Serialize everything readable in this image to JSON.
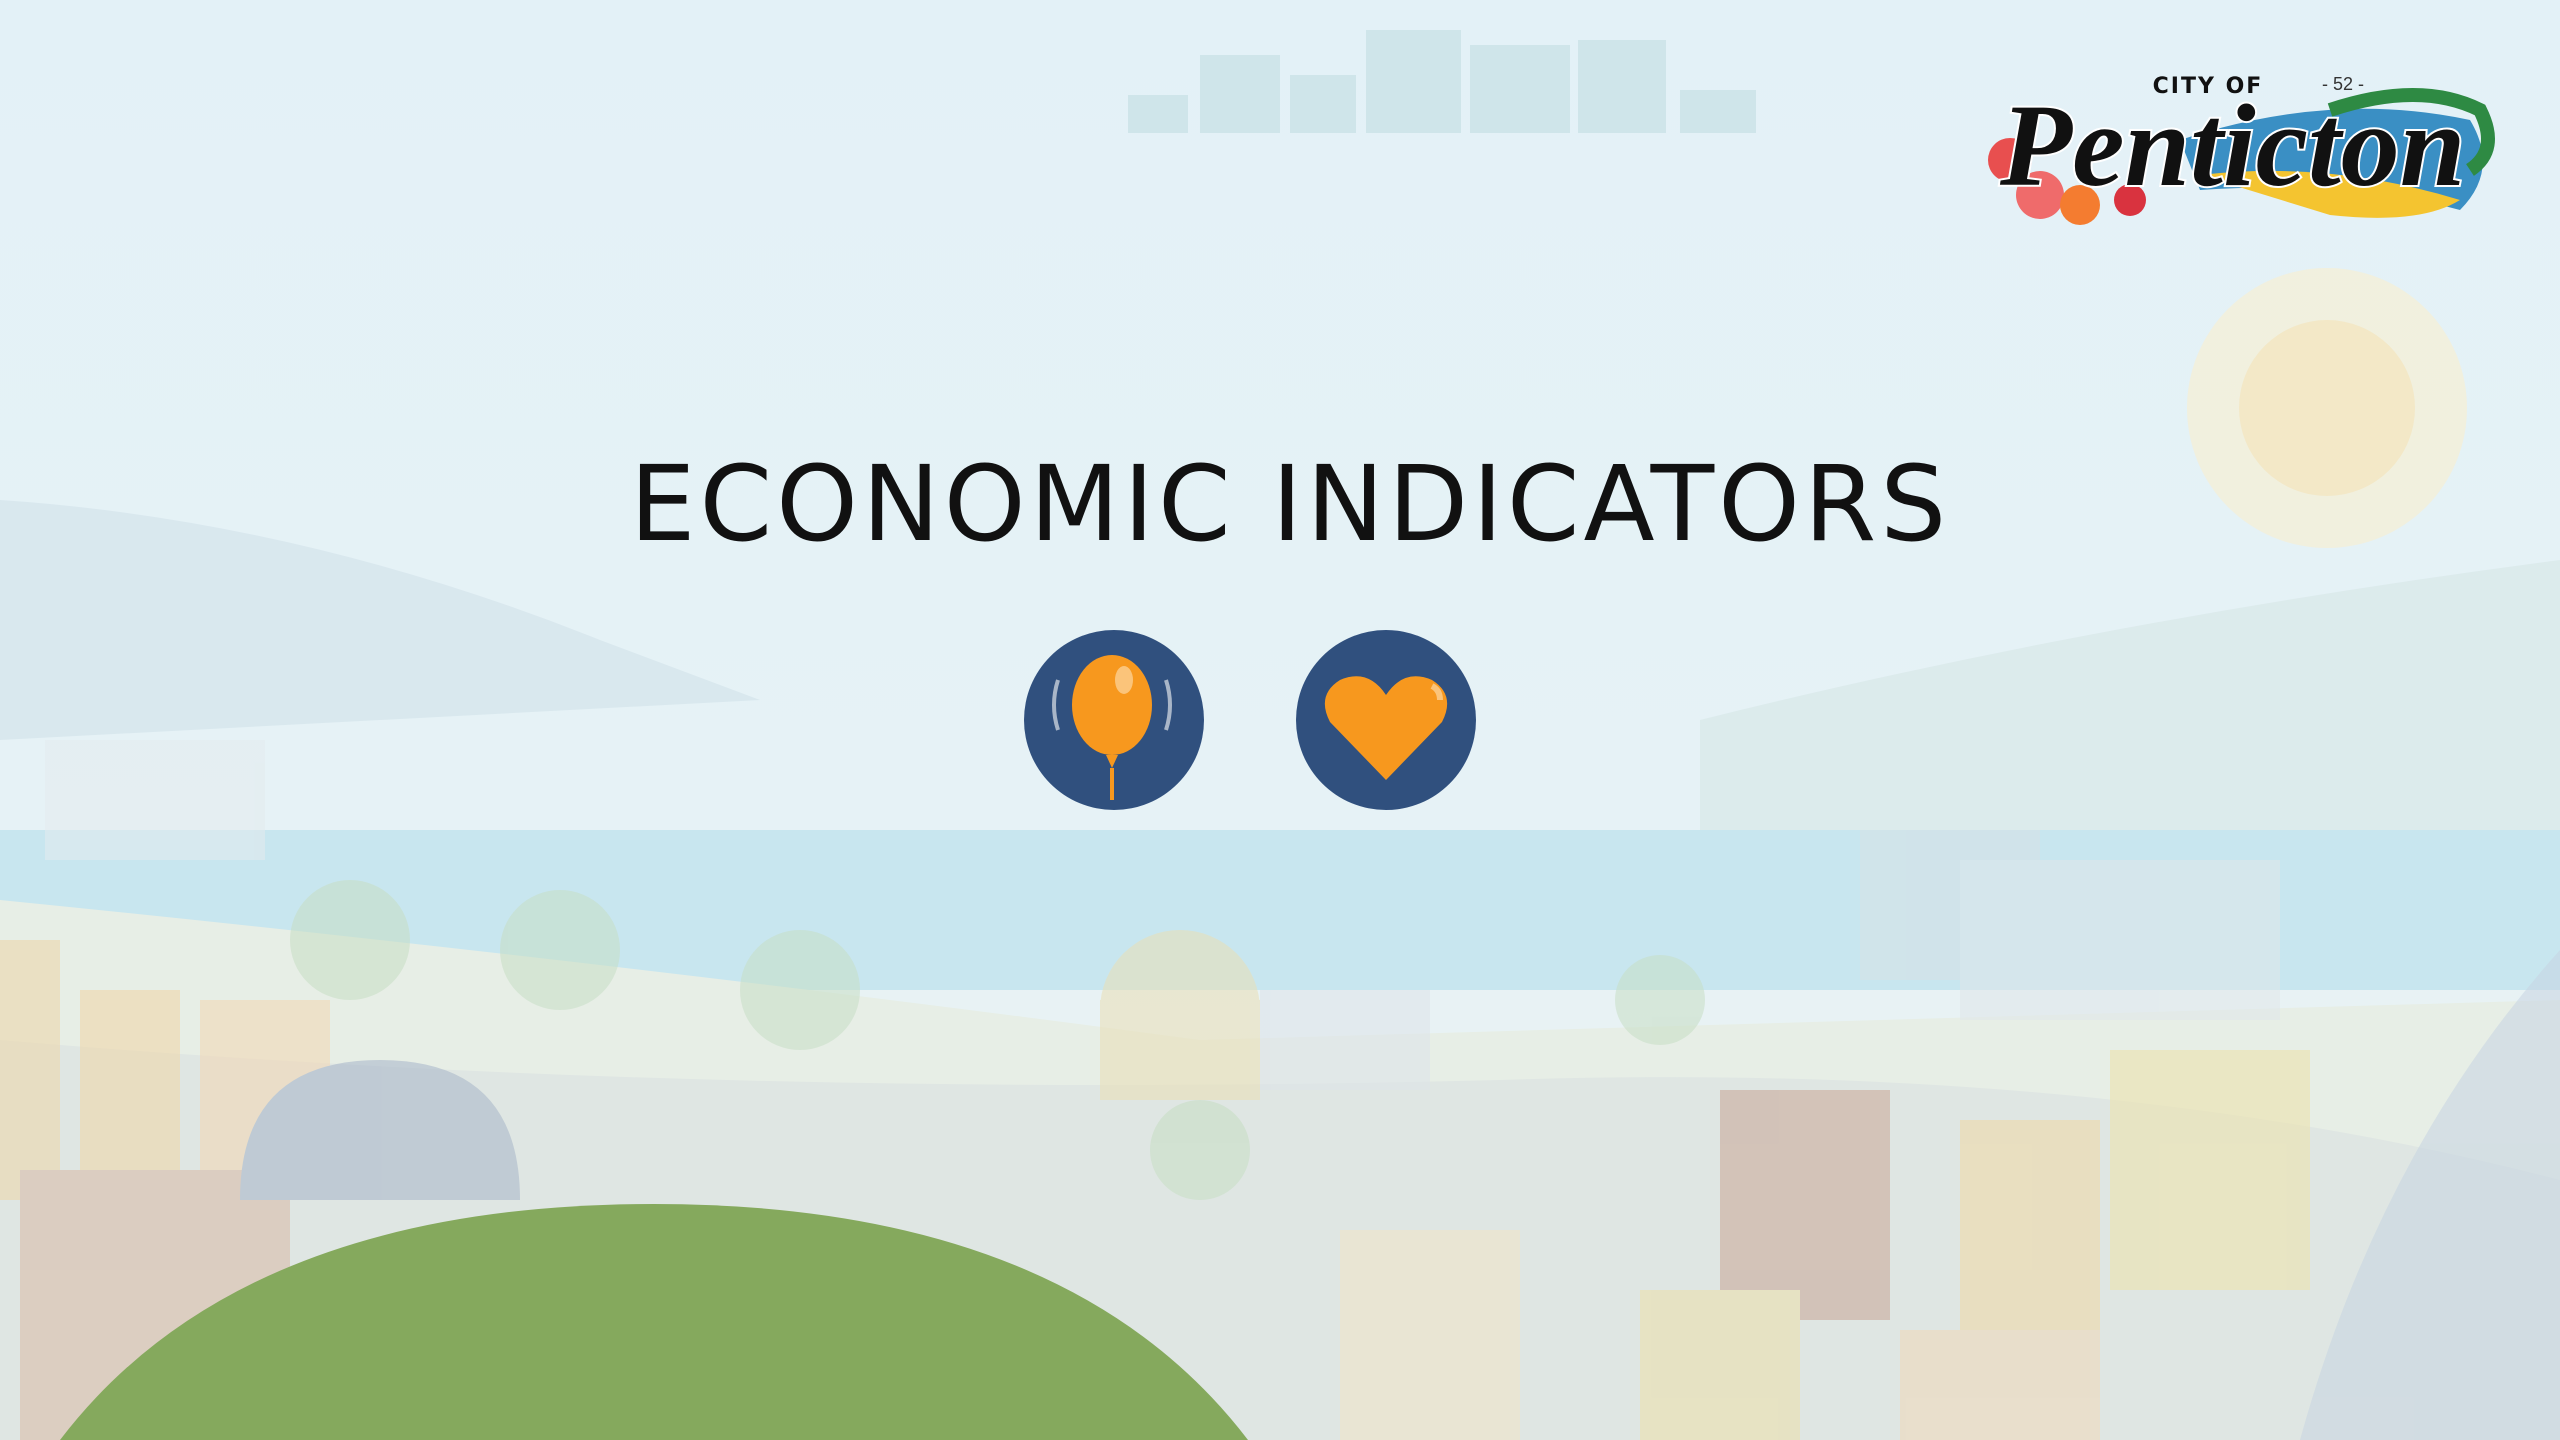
{
  "slide": {
    "title": "ECONOMIC INDICATORS",
    "page_number": "- 52 -"
  },
  "logo": {
    "top": "CITY OF",
    "name": "Penticton"
  }
}
